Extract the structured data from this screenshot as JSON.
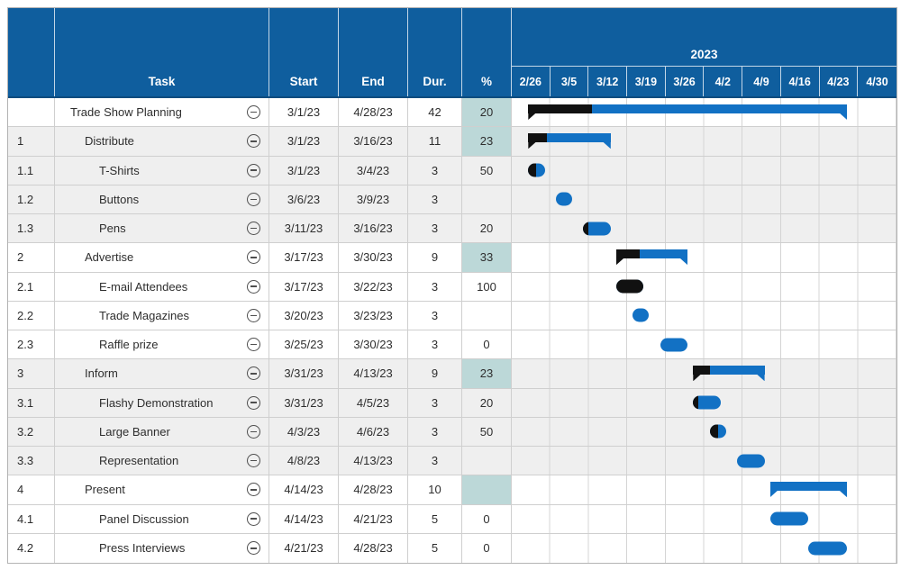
{
  "header": {
    "columns": {
      "id": "",
      "task": "Task",
      "start": "Start",
      "end": "End",
      "dur": "Dur.",
      "pct": "%"
    },
    "year": "2023",
    "weeks": [
      "2/26",
      "3/5",
      "3/12",
      "3/19",
      "3/26",
      "4/2",
      "4/9",
      "4/16",
      "4/23",
      "4/30"
    ]
  },
  "colors": {
    "header_bg": "#0f5e9e",
    "bar_blue": "#1271c4",
    "bar_complete_black": "#111111",
    "pct_cell_teal": "#bcd8d8",
    "alt_row_gray": "#efefef",
    "grid_line": "#d4d4d4"
  },
  "timeline": {
    "origin": "2/26/23",
    "weeks_shown": 10
  },
  "chart_data": {
    "type": "table",
    "subtype": "gantt",
    "title": "Trade Show Planning Gantt",
    "year": "2023",
    "week_ticks": [
      "2/26",
      "3/5",
      "3/12",
      "3/19",
      "3/26",
      "4/2",
      "4/9",
      "4/16",
      "4/23",
      "4/30"
    ],
    "tasks": [
      {
        "id": "",
        "name": "Trade Show Planning",
        "level": 0,
        "summary": true,
        "start": "3/1/23",
        "end": "4/28/23",
        "dur": "42",
        "pct": "20",
        "shade": "white"
      },
      {
        "id": "1",
        "name": "Distribute",
        "level": 1,
        "summary": true,
        "start": "3/1/23",
        "end": "3/16/23",
        "dur": "11",
        "pct": "23",
        "shade": "gray"
      },
      {
        "id": "1.1",
        "name": "T-Shirts",
        "level": 2,
        "summary": false,
        "start": "3/1/23",
        "end": "3/4/23",
        "dur": "3",
        "pct": "50",
        "shade": "gray"
      },
      {
        "id": "1.2",
        "name": "Buttons",
        "level": 2,
        "summary": false,
        "start": "3/6/23",
        "end": "3/9/23",
        "dur": "3",
        "pct": "",
        "shade": "gray"
      },
      {
        "id": "1.3",
        "name": "Pens",
        "level": 2,
        "summary": false,
        "start": "3/11/23",
        "end": "3/16/23",
        "dur": "3",
        "pct": "20",
        "shade": "gray"
      },
      {
        "id": "2",
        "name": "Advertise",
        "level": 1,
        "summary": true,
        "start": "3/17/23",
        "end": "3/30/23",
        "dur": "9",
        "pct": "33",
        "shade": "white"
      },
      {
        "id": "2.1",
        "name": "E-mail Attendees",
        "level": 2,
        "summary": false,
        "start": "3/17/23",
        "end": "3/22/23",
        "dur": "3",
        "pct": "100",
        "shade": "white"
      },
      {
        "id": "2.2",
        "name": "Trade Magazines",
        "level": 2,
        "summary": false,
        "start": "3/20/23",
        "end": "3/23/23",
        "dur": "3",
        "pct": "",
        "shade": "white"
      },
      {
        "id": "2.3",
        "name": "Raffle prize",
        "level": 2,
        "summary": false,
        "start": "3/25/23",
        "end": "3/30/23",
        "dur": "3",
        "pct": "0",
        "shade": "white"
      },
      {
        "id": "3",
        "name": "Inform",
        "level": 1,
        "summary": true,
        "start": "3/31/23",
        "end": "4/13/23",
        "dur": "9",
        "pct": "23",
        "shade": "gray"
      },
      {
        "id": "3.1",
        "name": "Flashy Demonstration",
        "level": 2,
        "summary": false,
        "start": "3/31/23",
        "end": "4/5/23",
        "dur": "3",
        "pct": "20",
        "shade": "gray"
      },
      {
        "id": "3.2",
        "name": "Large Banner",
        "level": 2,
        "summary": false,
        "start": "4/3/23",
        "end": "4/6/23",
        "dur": "3",
        "pct": "50",
        "shade": "gray"
      },
      {
        "id": "3.3",
        "name": "Representation",
        "level": 2,
        "summary": false,
        "start": "4/8/23",
        "end": "4/13/23",
        "dur": "3",
        "pct": "",
        "shade": "gray"
      },
      {
        "id": "4",
        "name": "Present",
        "level": 1,
        "summary": true,
        "start": "4/14/23",
        "end": "4/28/23",
        "dur": "10",
        "pct": "",
        "shade": "white"
      },
      {
        "id": "4.1",
        "name": "Panel Discussion",
        "level": 2,
        "summary": false,
        "start": "4/14/23",
        "end": "4/21/23",
        "dur": "5",
        "pct": "0",
        "shade": "white"
      },
      {
        "id": "4.2",
        "name": "Press Interviews",
        "level": 2,
        "summary": false,
        "start": "4/21/23",
        "end": "4/28/23",
        "dur": "5",
        "pct": "0",
        "shade": "white"
      }
    ]
  }
}
